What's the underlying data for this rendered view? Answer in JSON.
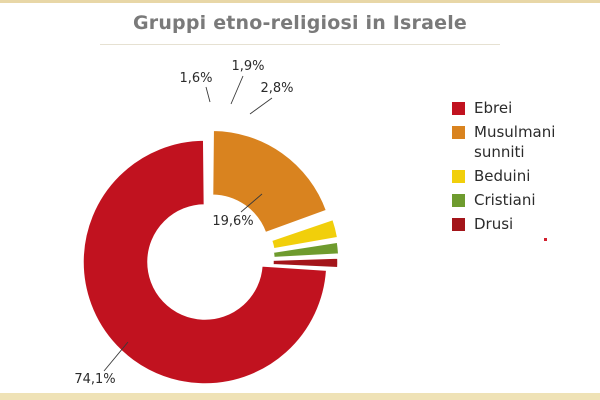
{
  "chart_data": {
    "type": "pie",
    "title": "Gruppi etno-religiosi in Israele",
    "categories": [
      "Ebrei",
      "Musulmani sunniti",
      "Beduini",
      "Cristiani",
      "Drusi"
    ],
    "values": [
      74.1,
      19.6,
      2.8,
      1.9,
      1.6
    ],
    "value_labels": [
      "74,1%",
      "19,6%",
      "2,8%",
      "1,9%",
      "1,6%"
    ],
    "colors": [
      "#c1121f",
      "#d9831f",
      "#f1cf0b",
      "#6e9b2e",
      "#a3151a"
    ],
    "donut": true,
    "exploded": true,
    "legend_position": "right"
  },
  "legend": {
    "items": [
      {
        "label": "Ebrei",
        "color": "#c1121f"
      },
      {
        "label": "Musulmani sunniti",
        "color": "#d9831f"
      },
      {
        "label": "Beduini",
        "color": "#f1cf0b"
      },
      {
        "label": "Cristiani",
        "color": "#6e9b2e"
      },
      {
        "label": "Drusi",
        "color": "#a3151a"
      }
    ]
  }
}
